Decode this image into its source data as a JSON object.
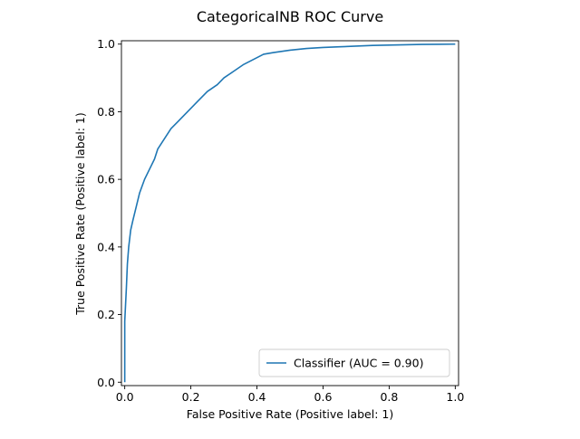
{
  "chart_data": {
    "type": "line",
    "title": "CategoricalNB ROC Curve",
    "xlabel": "False Positive Rate (Positive label: 1)",
    "ylabel": "True Positive Rate (Positive label: 1)",
    "xlim": [
      -0.01,
      1.01
    ],
    "ylim": [
      -0.01,
      1.01
    ],
    "xticks": [
      0.0,
      0.2,
      0.4,
      0.6,
      0.8,
      1.0
    ],
    "yticks": [
      0.0,
      0.2,
      0.4,
      0.6,
      0.8,
      1.0
    ],
    "xtick_labels": [
      "0.0",
      "0.2",
      "0.4",
      "0.6",
      "0.8",
      "1.0"
    ],
    "ytick_labels": [
      "0.0",
      "0.2",
      "0.4",
      "0.6",
      "0.8",
      "1.0"
    ],
    "grid": false,
    "legend_position": "lower-right",
    "series": [
      {
        "name": "Classifier (AUC = 0.90)",
        "color": "#1f77b4",
        "x": [
          0.0,
          0.0,
          0.005,
          0.008,
          0.012,
          0.018,
          0.025,
          0.035,
          0.045,
          0.06,
          0.075,
          0.09,
          0.1,
          0.12,
          0.14,
          0.16,
          0.18,
          0.2,
          0.22,
          0.25,
          0.28,
          0.3,
          0.33,
          0.36,
          0.38,
          0.4,
          0.42,
          0.45,
          0.5,
          0.55,
          0.6,
          0.65,
          0.7,
          0.75,
          0.8,
          0.85,
          0.9,
          0.95,
          1.0
        ],
        "y": [
          0.0,
          0.18,
          0.28,
          0.35,
          0.4,
          0.45,
          0.48,
          0.52,
          0.56,
          0.6,
          0.63,
          0.66,
          0.69,
          0.72,
          0.75,
          0.77,
          0.79,
          0.81,
          0.83,
          0.86,
          0.88,
          0.9,
          0.92,
          0.94,
          0.95,
          0.96,
          0.97,
          0.975,
          0.982,
          0.987,
          0.99,
          0.992,
          0.994,
          0.996,
          0.997,
          0.998,
          0.999,
          0.9995,
          1.0
        ]
      }
    ]
  }
}
